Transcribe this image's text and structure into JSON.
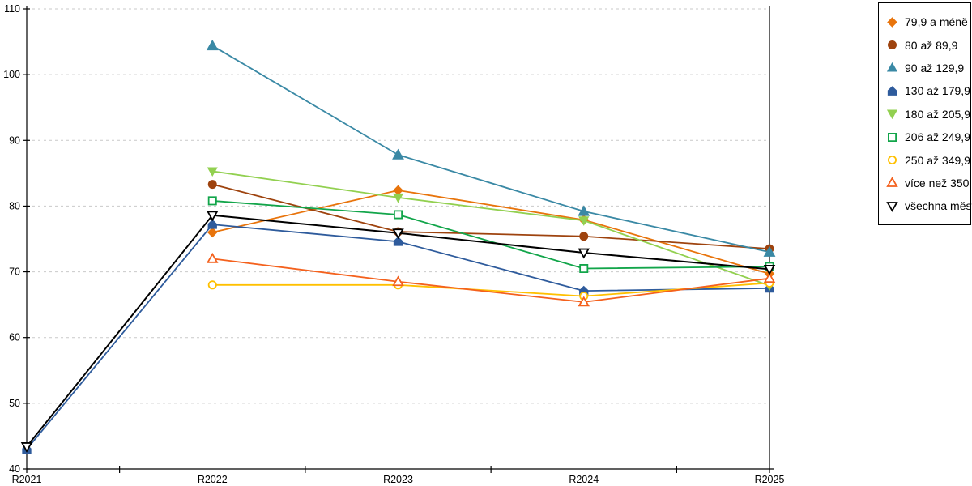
{
  "chart_data": {
    "type": "line",
    "title": "",
    "xlabel": "",
    "ylabel": "",
    "categories": [
      "R2021",
      "R2022",
      "R2023",
      "R2024",
      "R2025"
    ],
    "y_axis": {
      "min": 40,
      "max": 110,
      "step": 10,
      "ticks": [
        40,
        50,
        60,
        70,
        80,
        90,
        100,
        110
      ]
    },
    "grid": "horizontal-dashed",
    "grid_color": "#c9c9c9",
    "axis_color": "#000000",
    "legend_position": "right",
    "legend_border_color": "#000000",
    "series": [
      {
        "name": "79,9 a méně",
        "color": "#E8740C",
        "marker": "diamond",
        "fill": "solid",
        "values": [
          null,
          76.0,
          82.4,
          77.9,
          69.7
        ]
      },
      {
        "name": "80 až 89,9",
        "color": "#9E430E",
        "marker": "circle",
        "fill": "solid",
        "values": [
          null,
          83.3,
          76.1,
          75.4,
          73.5
        ]
      },
      {
        "name": "90 až 129,9",
        "color": "#3A89A5",
        "marker": "triangle-up",
        "fill": "solid",
        "values": [
          null,
          104.4,
          87.8,
          79.2,
          73.0
        ]
      },
      {
        "name": "130 až 179,9",
        "color": "#2E5B9C",
        "marker": "pentagon",
        "fill": "solid",
        "values": [
          43.0,
          77.2,
          74.6,
          67.1,
          67.5
        ]
      },
      {
        "name": "180 až 205,9",
        "color": "#92D050",
        "marker": "triangle-down",
        "fill": "solid",
        "values": [
          null,
          85.3,
          81.3,
          77.8,
          67.9
        ]
      },
      {
        "name": "206 až 249,9",
        "color": "#12A54A",
        "marker": "square",
        "fill": "open",
        "values": [
          null,
          80.8,
          78.7,
          70.5,
          70.8
        ]
      },
      {
        "name": "250 až 349,9",
        "color": "#FFC000",
        "marker": "circle",
        "fill": "open",
        "values": [
          null,
          68.0,
          68.0,
          66.3,
          68.3
        ]
      },
      {
        "name": "více než 350",
        "color": "#F4611D",
        "marker": "triangle-up",
        "fill": "open",
        "values": [
          null,
          72.0,
          68.5,
          65.4,
          69.0
        ]
      },
      {
        "name": "všechna města",
        "color": "#000000",
        "marker": "triangle-down",
        "fill": "open",
        "values": [
          43.4,
          78.6,
          75.9,
          72.9,
          70.4
        ]
      }
    ]
  }
}
